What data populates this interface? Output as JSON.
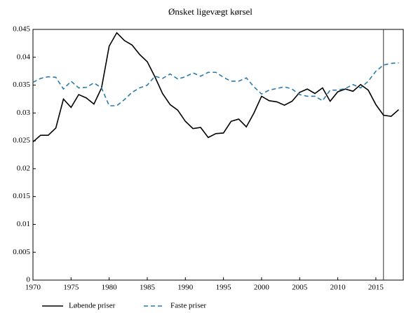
{
  "chart_data": {
    "type": "line",
    "title": "Ønsket ligevægt kørsel",
    "x": [
      1970,
      1971,
      1972,
      1973,
      1974,
      1975,
      1976,
      1977,
      1978,
      1979,
      1980,
      1981,
      1982,
      1983,
      1984,
      1985,
      1986,
      1987,
      1988,
      1989,
      1990,
      1991,
      1992,
      1993,
      1994,
      1995,
      1996,
      1997,
      1998,
      1999,
      2000,
      2001,
      2002,
      2003,
      2004,
      2005,
      2006,
      2007,
      2008,
      2009,
      2010,
      2011,
      2012,
      2013,
      2014,
      2015,
      2016,
      2017,
      2018
    ],
    "series": [
      {
        "name": "Løbende priser",
        "color": "#000000",
        "dash": false,
        "values": [
          0.0248,
          0.026,
          0.026,
          0.0273,
          0.0325,
          0.031,
          0.0333,
          0.0327,
          0.0316,
          0.0345,
          0.042,
          0.0444,
          0.043,
          0.0422,
          0.0405,
          0.0392,
          0.0365,
          0.0335,
          0.0315,
          0.0305,
          0.0285,
          0.0272,
          0.0274,
          0.0256,
          0.0263,
          0.0264,
          0.0285,
          0.0289,
          0.0275,
          0.03,
          0.033,
          0.0322,
          0.032,
          0.0314,
          0.0321,
          0.0337,
          0.0343,
          0.0335,
          0.0345,
          0.0321,
          0.0338,
          0.0343,
          0.0339,
          0.0351,
          0.0341,
          0.0315,
          0.0296,
          0.0294,
          0.0306
        ]
      },
      {
        "name": "Faste priser",
        "color": "#2b7ba8",
        "dash": true,
        "values": [
          0.0355,
          0.0362,
          0.0365,
          0.0364,
          0.0343,
          0.0357,
          0.0345,
          0.0346,
          0.0354,
          0.0345,
          0.0313,
          0.0313,
          0.0324,
          0.0337,
          0.0345,
          0.035,
          0.0366,
          0.0362,
          0.037,
          0.0361,
          0.0365,
          0.0372,
          0.0366,
          0.0373,
          0.0373,
          0.0364,
          0.0357,
          0.0357,
          0.0363,
          0.0347,
          0.0334,
          0.0341,
          0.0344,
          0.0347,
          0.0343,
          0.0333,
          0.033,
          0.033,
          0.0322,
          0.0341,
          0.0341,
          0.0344,
          0.0351,
          0.0345,
          0.0357,
          0.0375,
          0.0386,
          0.0389,
          0.039
        ]
      }
    ],
    "xlim": [
      1970,
      2018.6
    ],
    "xticks": [
      1970,
      1975,
      1980,
      1985,
      1990,
      1995,
      2000,
      2005,
      2010,
      2015
    ],
    "ylim": [
      0,
      0.045
    ],
    "yticks": [
      0,
      0.005,
      0.01,
      0.015,
      0.02,
      0.025,
      0.03,
      0.035,
      0.04,
      0.045
    ],
    "vline": 2016,
    "legend": "bottom"
  }
}
